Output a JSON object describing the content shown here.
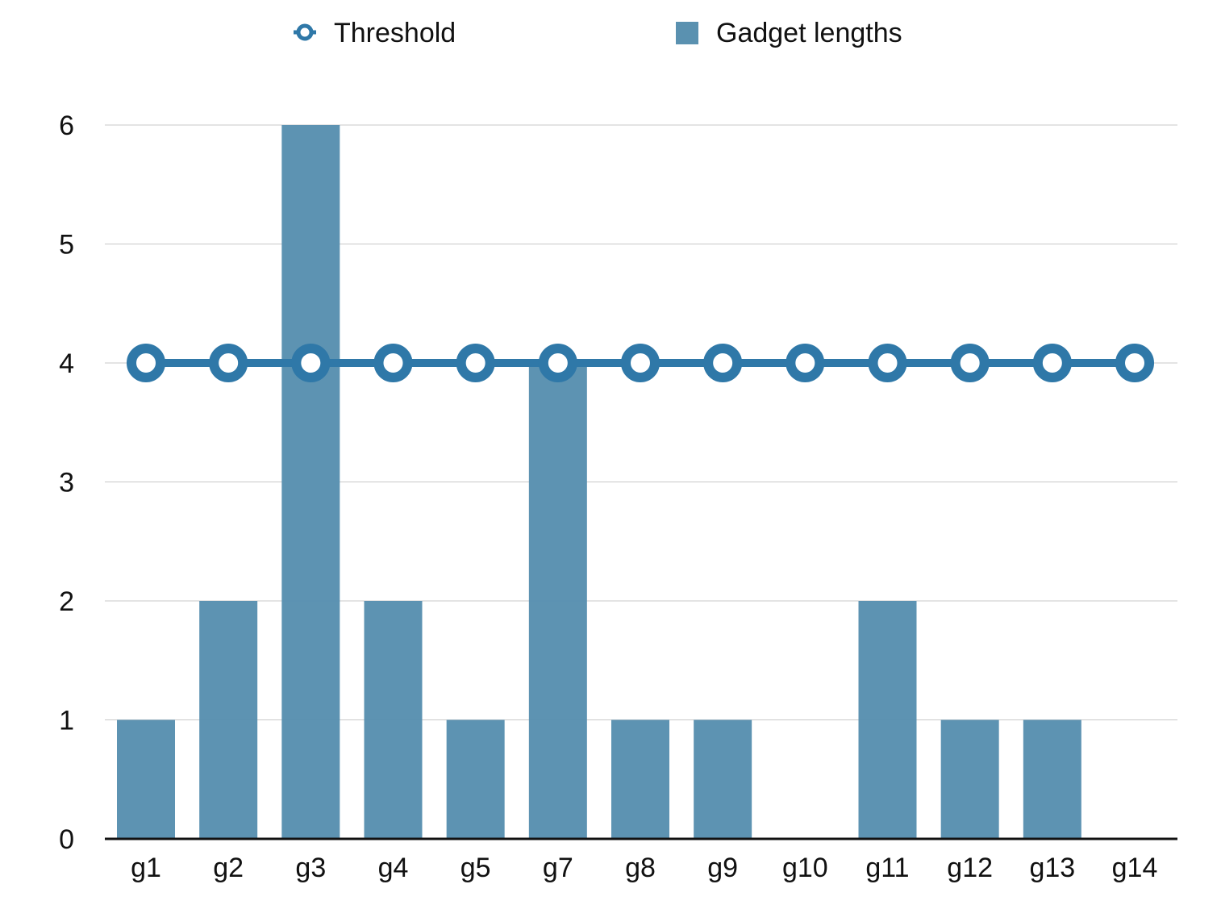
{
  "chart_data": {
    "type": "bar",
    "title": "",
    "xlabel": "",
    "ylabel": "",
    "categories": [
      "g1",
      "g2",
      "g3",
      "g4",
      "g5",
      "g7",
      "g8",
      "g9",
      "g10",
      "g11",
      "g12",
      "g13",
      "g14"
    ],
    "series": [
      {
        "name": "Gadget lengths",
        "type": "bar",
        "color": "#5a91b0",
        "values": [
          1,
          2,
          6,
          2,
          1,
          4,
          1,
          1,
          0,
          2,
          1,
          1,
          0
        ]
      },
      {
        "name": "Threshold",
        "type": "line",
        "color": "#2f78a8",
        "values": [
          4,
          4,
          4,
          4,
          4,
          4,
          4,
          4,
          4,
          4,
          4,
          4,
          4
        ]
      }
    ],
    "ylim": [
      0,
      6
    ],
    "yticks": [
      0,
      1,
      2,
      3,
      4,
      5,
      6
    ],
    "grid": true,
    "legend": "top-center"
  }
}
